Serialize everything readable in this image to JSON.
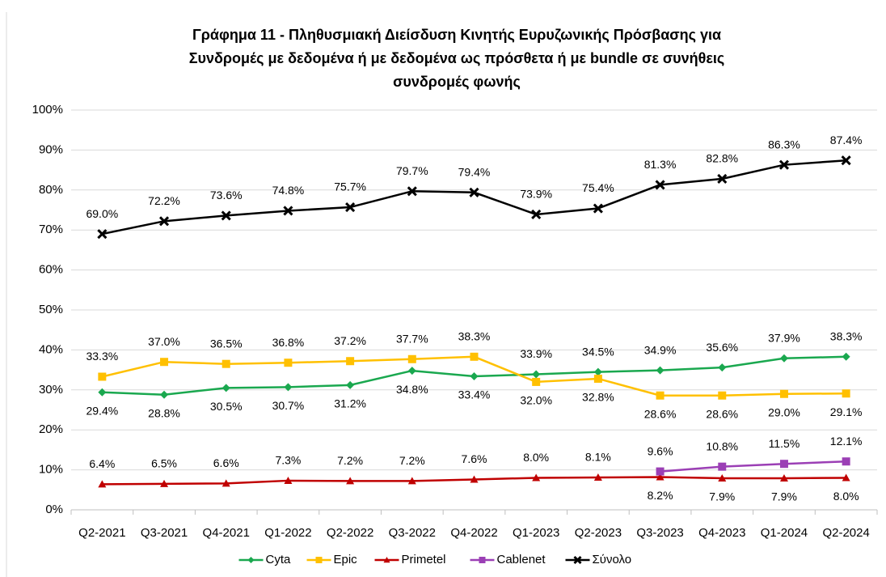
{
  "chart_data": {
    "type": "line",
    "title": [
      "Γράφημα 11 - Πληθυσμιακή Διείσδυση Κινητής Ευρυζωνικής Πρόσβασης για",
      "Συνδρομές με δεδομένα ή με δεδομένα ως πρόσθετα ή με bundle σε συνήθεις",
      "συνδρομές φωνής"
    ],
    "categories": [
      "Q2-2021",
      "Q3-2021",
      "Q4-2021",
      "Q1-2022",
      "Q2-2022",
      "Q3-2022",
      "Q4-2022",
      "Q1-2023",
      "Q2-2023",
      "Q3-2023",
      "Q4-2023",
      "Q1-2024",
      "Q2-2024"
    ],
    "ylim": [
      0,
      100
    ],
    "yticks": [
      {
        "value": 0,
        "label": "0%"
      },
      {
        "value": 10,
        "label": "10%"
      },
      {
        "value": 20,
        "label": "20%"
      },
      {
        "value": 30,
        "label": "30%"
      },
      {
        "value": 40,
        "label": "40%"
      },
      {
        "value": 50,
        "label": "50%"
      },
      {
        "value": 60,
        "label": "60%"
      },
      {
        "value": 70,
        "label": "70%"
      },
      {
        "value": 80,
        "label": "80%"
      },
      {
        "value": 90,
        "label": "90%"
      },
      {
        "value": 100,
        "label": "100%"
      }
    ],
    "grid": true,
    "legend": "bottom",
    "series": [
      {
        "name": "Cyta",
        "color": "#1aa84f",
        "marker": "diamond",
        "values": [
          29.4,
          28.8,
          30.5,
          30.7,
          31.2,
          34.8,
          33.4,
          33.9,
          34.5,
          34.9,
          35.6,
          37.9,
          38.3
        ],
        "value_labels": [
          "29.4%",
          "28.8%",
          "30.5%",
          "30.7%",
          "31.2%",
          "34.8%",
          "33.4%",
          "33.9%",
          "34.5%",
          "34.9%",
          "35.6%",
          "37.9%",
          "38.3%"
        ]
      },
      {
        "name": "Epic",
        "color": "#ffc000",
        "marker": "square",
        "values": [
          33.3,
          37.0,
          36.5,
          36.8,
          37.2,
          37.7,
          38.3,
          32.0,
          32.8,
          28.6,
          28.6,
          29.0,
          29.1
        ],
        "value_labels": [
          "33.3%",
          "37.0%",
          "36.5%",
          "36.8%",
          "37.2%",
          "37.7%",
          "38.3%",
          "32.0%",
          "32.8%",
          "28.6%",
          "28.6%",
          "29.0%",
          "29.1%"
        ]
      },
      {
        "name": "Primetel",
        "color": "#c00000",
        "marker": "triangle",
        "values": [
          6.4,
          6.5,
          6.6,
          7.3,
          7.2,
          7.2,
          7.6,
          8.0,
          8.1,
          8.2,
          7.9,
          7.9,
          8.0
        ],
        "value_labels": [
          "6.4%",
          "6.5%",
          "6.6%",
          "7.3%",
          "7.2%",
          "7.2%",
          "7.6%",
          "8.0%",
          "8.1%",
          "8.2%",
          "7.9%",
          "7.9%",
          "8.0%"
        ]
      },
      {
        "name": "Cablenet",
        "color": "#9b3fb5",
        "marker": "square",
        "values": [
          null,
          null,
          null,
          null,
          null,
          null,
          null,
          null,
          null,
          9.6,
          10.8,
          11.5,
          12.1
        ],
        "value_labels": [
          null,
          null,
          null,
          null,
          null,
          null,
          null,
          null,
          null,
          "9.6%",
          "10.8%",
          "11.5%",
          "12.1%"
        ]
      },
      {
        "name": "Σύνολο",
        "color": "#000000",
        "marker": "x",
        "values": [
          69.0,
          72.2,
          73.6,
          74.8,
          75.7,
          79.7,
          79.4,
          73.9,
          75.4,
          81.3,
          82.8,
          86.3,
          87.4
        ],
        "value_labels": [
          "69.0%",
          "72.2%",
          "73.6%",
          "74.8%",
          "75.7%",
          "79.7%",
          "79.4%",
          "73.9%",
          "75.4%",
          "81.3%",
          "82.8%",
          "86.3%",
          "87.4%"
        ]
      }
    ]
  }
}
